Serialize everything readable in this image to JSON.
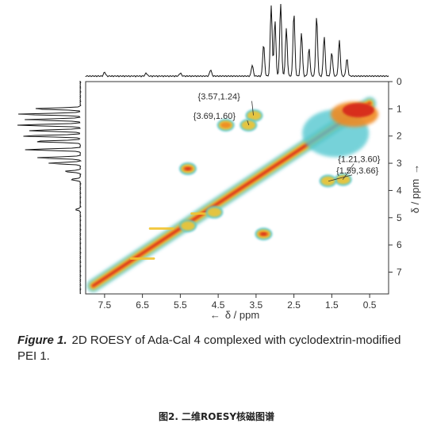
{
  "chart_data": {
    "type": "heatmap",
    "subtype": "2D ROESY NMR contour spectrum",
    "xlabel": "δ / ppm",
    "ylabel": "δ / ppm",
    "x_axis_arrow": "←",
    "y_axis_arrow": "→",
    "xlim": [
      8.0,
      0.0
    ],
    "ylim": [
      0.0,
      7.8
    ],
    "x_ticks": [
      7.5,
      6.5,
      5.5,
      4.5,
      3.5,
      2.5,
      1.5,
      0.5
    ],
    "x_tick_labels": [
      "7.5",
      "6.5",
      "5.5",
      "4.5",
      "3.5",
      "2.5",
      "1.5",
      "0.5"
    ],
    "y_ticks": [
      0,
      1,
      2,
      3,
      4,
      5,
      6,
      7
    ],
    "y_tick_labels": [
      "0",
      "1",
      "2",
      "3",
      "4",
      "5",
      "6",
      "7"
    ],
    "annotations": [
      {
        "label": "{3.57,1.24}",
        "x": 3.57,
        "y": 1.24,
        "side": "left"
      },
      {
        "label": "{3.69,1.60}",
        "x": 3.69,
        "y": 1.6,
        "side": "left"
      },
      {
        "label": "{1.21,3.60}",
        "x": 1.21,
        "y": 3.6,
        "side": "right"
      },
      {
        "label": "{1.59,3.66}",
        "x": 1.59,
        "y": 3.66,
        "side": "right"
      }
    ],
    "diagonal": {
      "from": [
        7.8,
        7.5
      ],
      "to": [
        0.5,
        0.8
      ]
    },
    "color_scale": [
      "#54c8d0",
      "#f2c430",
      "#f08a24",
      "#d72a1c"
    ],
    "cross_peaks": [
      {
        "x": 5.3,
        "y": 3.2,
        "level": 3
      },
      {
        "x": 3.3,
        "y": 5.6,
        "level": 3
      },
      {
        "x": 4.3,
        "y": 1.6,
        "level": 2
      },
      {
        "x": 3.55,
        "y": 1.25,
        "level": 1
      },
      {
        "x": 3.7,
        "y": 1.6,
        "level": 1
      },
      {
        "x": 1.2,
        "y": 3.6,
        "level": 1
      },
      {
        "x": 1.6,
        "y": 3.65,
        "level": 1
      },
      {
        "x": 4.6,
        "y": 4.8,
        "level": 1
      },
      {
        "x": 5.3,
        "y": 5.3,
        "level": 1
      }
    ],
    "ridges": [
      {
        "y": 4.85,
        "x_from": 5.2,
        "x_to": 3.2
      },
      {
        "y": 5.4,
        "x_from": 6.3,
        "x_to": 3.4
      },
      {
        "y": 6.5,
        "x_from": 6.8,
        "x_to": 3.5
      }
    ]
  },
  "caption": {
    "label": "Figure 1.",
    "text": "2D ROESY of Ada-Cal 4 complexed with cyclodextrin-modified PEI 1."
  },
  "footer": "图2. 二维ROESY核磁图谱"
}
